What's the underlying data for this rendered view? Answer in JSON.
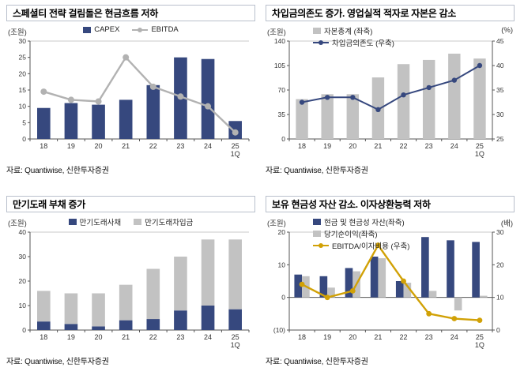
{
  "colors": {
    "navy": "#36487e",
    "gray": "#c2c2c2",
    "grayline": "#b2b2b2",
    "gold": "#d1a106"
  },
  "chart_data": [
    {
      "type": "bar+line",
      "title": "스페셜티 전략 걸림돌은 현금흐름 저하",
      "unit_left": "(조원)",
      "source": "자료: Quantiwise, 신한투자증권",
      "legend_layout": "row-center",
      "categories": [
        "18",
        "19",
        "20",
        "21",
        "22",
        "23",
        "24",
        "25"
      ],
      "x_sublabel": "1Q",
      "left_axis": {
        "min": 0,
        "max": 30,
        "ticks": [
          {
            "v": 0,
            "t": "0"
          },
          {
            "v": 5,
            "t": "5"
          },
          {
            "v": 10,
            "t": "10"
          },
          {
            "v": 15,
            "t": "15"
          },
          {
            "v": 20,
            "t": "20"
          },
          {
            "v": 25,
            "t": "25"
          },
          {
            "v": 30,
            "t": "30"
          }
        ]
      },
      "series": [
        {
          "name": "CAPEX",
          "type": "bar",
          "axis": "left",
          "color": "navy",
          "values": [
            9.5,
            11,
            10.5,
            12,
            16.5,
            25,
            24.5,
            5.5
          ]
        },
        {
          "name": "EBITDA",
          "type": "line",
          "axis": "left",
          "color": "grayline",
          "width": 2.4,
          "marker_r": 4,
          "values": [
            14.5,
            12,
            11.5,
            25,
            16,
            13,
            10,
            2
          ]
        }
      ]
    },
    {
      "type": "bar+line",
      "title": "차입금의존도 증가. 영업실적 적자로 자본은 감소",
      "unit_left": "(조원)",
      "unit_right": "(%)",
      "source": "자료: Quantiwise, 신한투자증권",
      "legend_layout": "col-left",
      "categories": [
        "18",
        "19",
        "20",
        "21",
        "22",
        "23",
        "24",
        "25"
      ],
      "x_sublabel": "1Q",
      "left_axis": {
        "min": 0,
        "max": 140,
        "ticks": [
          {
            "v": 0,
            "t": "0"
          },
          {
            "v": 35,
            "t": "35"
          },
          {
            "v": 70,
            "t": "70"
          },
          {
            "v": 105,
            "t": "105"
          },
          {
            "v": 140,
            "t": "140"
          }
        ]
      },
      "right_axis": {
        "min": 25,
        "max": 45,
        "ticks": [
          {
            "v": 25,
            "t": "25"
          },
          {
            "v": 30,
            "t": "30"
          },
          {
            "v": 35,
            "t": "35"
          },
          {
            "v": 40,
            "t": "40"
          },
          {
            "v": 45,
            "t": "45"
          }
        ]
      },
      "series": [
        {
          "name": "자본총계 (좌축)",
          "type": "bar",
          "axis": "left",
          "color": "gray",
          "values": [
            57,
            64,
            64,
            88,
            107,
            113,
            122,
            115
          ]
        },
        {
          "name": "차입금의존도 (우축)",
          "type": "line",
          "axis": "right",
          "color": "navy",
          "width": 2,
          "marker_r": 3.2,
          "values": [
            32.5,
            33.5,
            33.5,
            31,
            34,
            35.5,
            37,
            40
          ]
        }
      ]
    },
    {
      "type": "stacked-bar",
      "title": "만기도래 부채 증가",
      "unit_left": "(조원)",
      "source": "자료: Quantiwise, 신한투자증권",
      "legend_layout": "row-center",
      "categories": [
        "18",
        "19",
        "20",
        "21",
        "22",
        "23",
        "24",
        "25"
      ],
      "x_sublabel": "1Q",
      "left_axis": {
        "min": 0,
        "max": 40,
        "ticks": [
          {
            "v": 0,
            "t": "0"
          },
          {
            "v": 10,
            "t": "10"
          },
          {
            "v": 20,
            "t": "20"
          },
          {
            "v": 30,
            "t": "30"
          },
          {
            "v": 40,
            "t": "40"
          }
        ]
      },
      "series": [
        {
          "name": "만기도래사채",
          "type": "stack",
          "axis": "left",
          "color": "navy",
          "values": [
            3.5,
            2.5,
            1.5,
            4,
            4.5,
            8,
            10,
            8.5
          ]
        },
        {
          "name": "만기도래차입금",
          "type": "stack",
          "axis": "left",
          "color": "gray",
          "values": [
            12.5,
            12.5,
            13.5,
            14.5,
            20.5,
            22,
            27,
            28.5
          ]
        }
      ]
    },
    {
      "type": "bar+line",
      "title": "보유 현금성 자산 감소. 이자상환능력 저하",
      "unit_left": "(조원)",
      "unit_right": "(배)",
      "source": "자료: Quantiwise, 신한투자증권",
      "legend_layout": "col-left",
      "categories": [
        "18",
        "19",
        "20",
        "21",
        "22",
        "23",
        "24",
        "25"
      ],
      "x_sublabel": "1Q",
      "left_axis": {
        "min": -10,
        "max": 20,
        "ticks": [
          {
            "v": -10,
            "t": "(10)"
          },
          {
            "v": 0,
            "t": "0"
          },
          {
            "v": 10,
            "t": "10"
          },
          {
            "v": 20,
            "t": "20"
          }
        ]
      },
      "right_axis": {
        "min": 0,
        "max": 30,
        "ticks": [
          {
            "v": 0,
            "t": "0"
          },
          {
            "v": 10,
            "t": "10"
          },
          {
            "v": 20,
            "t": "20"
          },
          {
            "v": 30,
            "t": "30"
          }
        ]
      },
      "series": [
        {
          "name": "현금 및 현금성 자산(좌축)",
          "type": "bar",
          "axis": "left",
          "color": "navy",
          "values": [
            7,
            6.5,
            9,
            12.5,
            5,
            18.5,
            17.5,
            17
          ]
        },
        {
          "name": "당기순이익(좌축)",
          "type": "bar",
          "axis": "left",
          "color": "gray",
          "values": [
            6.5,
            3,
            8,
            12,
            4.5,
            2,
            -4,
            0.5
          ]
        },
        {
          "name": "EBITDA/이자비용 (우축)",
          "type": "line",
          "axis": "right",
          "color": "gold",
          "width": 2.4,
          "marker_r": 3.4,
          "values": [
            14,
            10,
            12,
            26,
            15,
            5,
            3.5,
            3
          ]
        }
      ]
    }
  ]
}
